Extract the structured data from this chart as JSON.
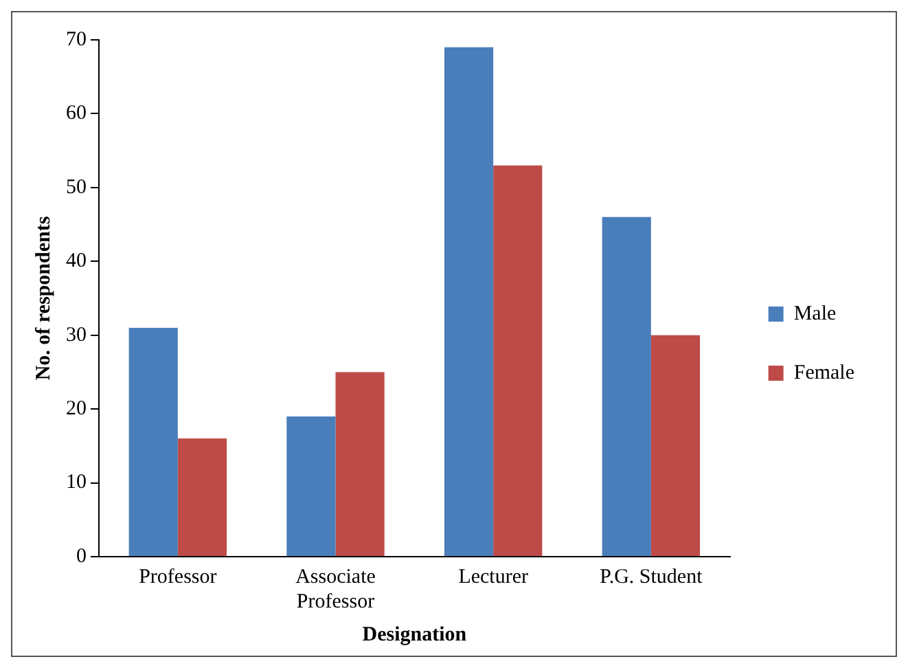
{
  "chart_data": {
    "type": "bar",
    "xlabel": "Designation",
    "ylabel": "No. of respondents",
    "categories": [
      "Professor",
      "Associate Professor",
      "Lecturer",
      "P.G. Student"
    ],
    "series": [
      {
        "name": "Male",
        "color": "#4a7ebb",
        "values": [
          31,
          19,
          69,
          46
        ]
      },
      {
        "name": "Female",
        "color": "#be4b48",
        "values": [
          16,
          25,
          53,
          30
        ]
      }
    ],
    "ylim": [
      0,
      70
    ],
    "yticks": [
      0,
      10,
      20,
      30,
      40,
      50,
      60,
      70
    ],
    "grid": false,
    "legend": "right"
  }
}
